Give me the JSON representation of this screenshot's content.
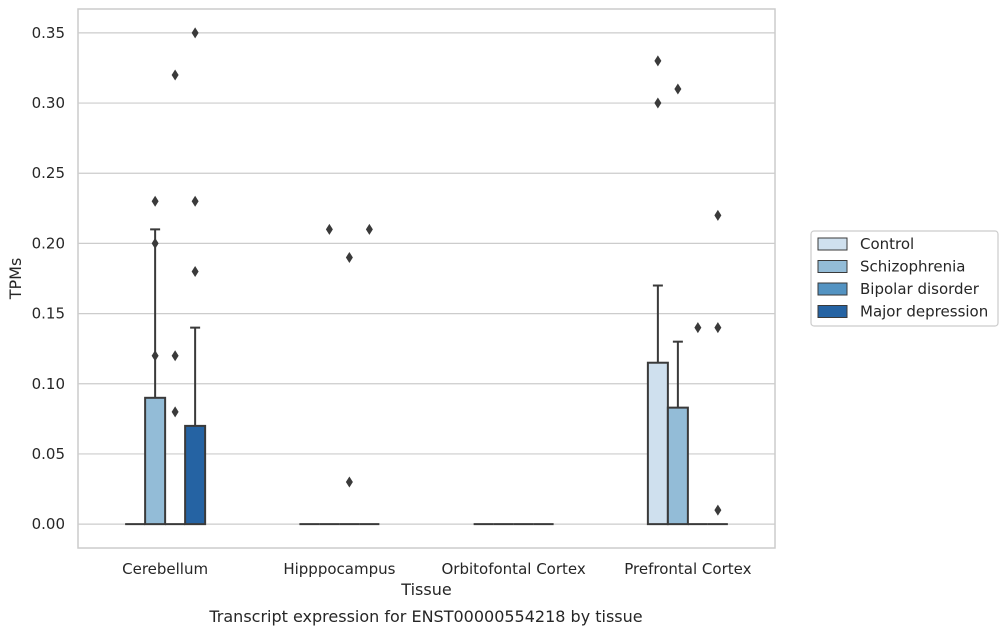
{
  "chart_data": {
    "type": "bar",
    "categories": [
      "Cerebellum",
      "Hipppocampus",
      "Orbitofontal Cortex",
      "Prefrontal Cortex"
    ],
    "xlabel": "Tissue",
    "ylabel": "TPMs",
    "caption": "Transcript expression for ENST00000554218 by tissue",
    "ylim": [
      -0.017,
      0.367
    ],
    "yticks": [
      0.0,
      0.05,
      0.1,
      0.15,
      0.2,
      0.25,
      0.3,
      0.35
    ],
    "ytick_labels": [
      "0.00",
      "0.05",
      "0.10",
      "0.15",
      "0.20",
      "0.25",
      "0.30",
      "0.35"
    ],
    "grid": "horizontal",
    "legend_position": "right",
    "colors": {
      "Control": "#cfe0ee",
      "Schizophrenia": "#93bcd7",
      "Bipolar disorder": "#5393c2",
      "Major depression": "#2563a3"
    },
    "series": [
      {
        "name": "Control",
        "values": [
          0,
          0,
          0,
          0.115
        ],
        "upper": [
          0,
          0,
          0,
          0.17
        ],
        "outliers": [
          [],
          [],
          [],
          [
            0.3,
            0.33
          ]
        ]
      },
      {
        "name": "Schizophrenia",
        "values": [
          0.09,
          0,
          0,
          0.083
        ],
        "upper": [
          0.21,
          0,
          0,
          0.13
        ],
        "outliers": [
          [
            0.12,
            0.2,
            0.23
          ],
          [
            0.21
          ],
          [],
          [
            0.31
          ]
        ]
      },
      {
        "name": "Bipolar disorder",
        "values": [
          0,
          0,
          0,
          0
        ],
        "upper": [
          0,
          0,
          0,
          0
        ],
        "outliers": [
          [
            0.08,
            0.12,
            0.32
          ],
          [
            0.03,
            0.19
          ],
          [],
          [
            0.14
          ]
        ]
      },
      {
        "name": "Major depression",
        "values": [
          0.07,
          0,
          0,
          0
        ],
        "upper": [
          0.14,
          0,
          0,
          0
        ],
        "outliers": [
          [
            0.18,
            0.23,
            0.35
          ],
          [
            0.21
          ],
          [],
          [
            0.01,
            0.14,
            0.22
          ]
        ]
      }
    ]
  }
}
